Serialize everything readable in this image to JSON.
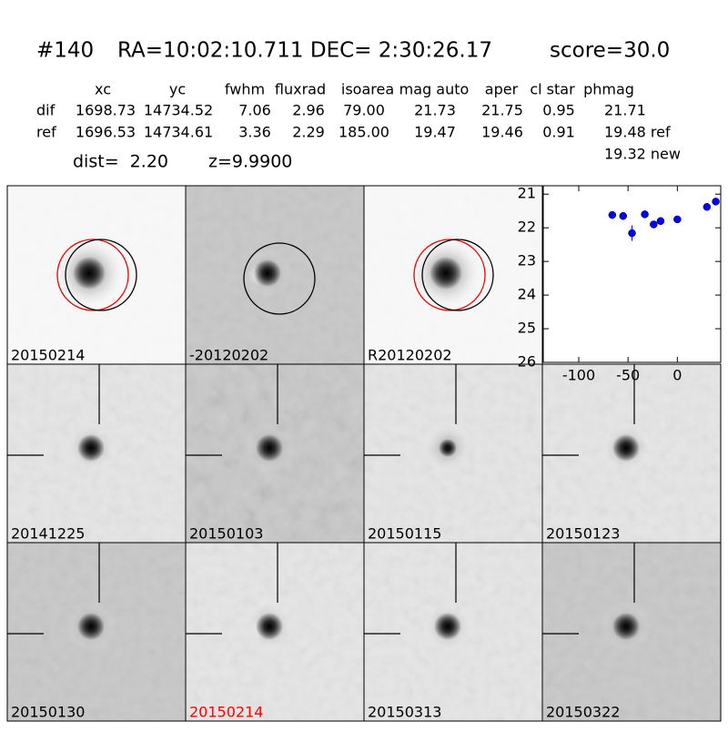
{
  "header": {
    "id": "#140",
    "coords": "RA=10:02:10.711 DEC= 2:30:26.17",
    "score": "score=30.0"
  },
  "table": {
    "columns": [
      "xc",
      "yc",
      "fwhm",
      "fluxrad",
      "isoarea",
      "mag auto",
      "aper",
      "cl star",
      "phmag"
    ],
    "rows": [
      [
        "dif",
        "1698.73",
        "14734.52",
        "7.06",
        "2.96",
        "79.00",
        "21.73",
        "21.75",
        "0.95",
        "21.71"
      ],
      [
        "ref",
        "1696.53",
        "14734.61",
        "3.36",
        "2.29",
        "185.00",
        "19.47",
        "19.46",
        "0.91",
        "19.48 ref"
      ]
    ],
    "extra": "19.32 new"
  },
  "dist": "dist=  2.20",
  "z": "z=9.9900",
  "panels": [
    {
      "label": "20150214",
      "color": "#000000"
    },
    {
      "label": "-20120202",
      "color": "#000000"
    },
    {
      "label": "R20120202",
      "color": "#000000"
    },
    {
      "label": "20141225",
      "color": "#000000"
    },
    {
      "label": "20150103",
      "color": "#000000"
    },
    {
      "label": "20150115",
      "color": "#000000"
    },
    {
      "label": "20150123",
      "color": "#000000"
    },
    {
      "label": "20150130",
      "color": "#000000"
    },
    {
      "label": "20150214",
      "color": "#ff0000"
    },
    {
      "label": "20150313",
      "color": "#000000"
    },
    {
      "label": "20150322",
      "color": "#000000"
    }
  ],
  "light_curve": {
    "type": "scatter",
    "color": "#0000ff",
    "x": [
      -66,
      -55,
      -46,
      -33,
      -24,
      -17,
      0,
      30,
      39
    ],
    "values": [
      21.62,
      21.65,
      22.16,
      21.6,
      21.9,
      21.8,
      21.75,
      21.38,
      21.22
    ],
    "errors": [
      0.04,
      0.04,
      0.23,
      0.04,
      0.05,
      0.05,
      0.04,
      0.04,
      0.04
    ],
    "xlim": [
      -136,
      44
    ],
    "ylim": [
      26,
      20.75
    ],
    "xticks": [
      -100,
      -50,
      0
    ],
    "yticks": [
      21,
      22,
      23,
      24,
      25,
      26
    ]
  }
}
